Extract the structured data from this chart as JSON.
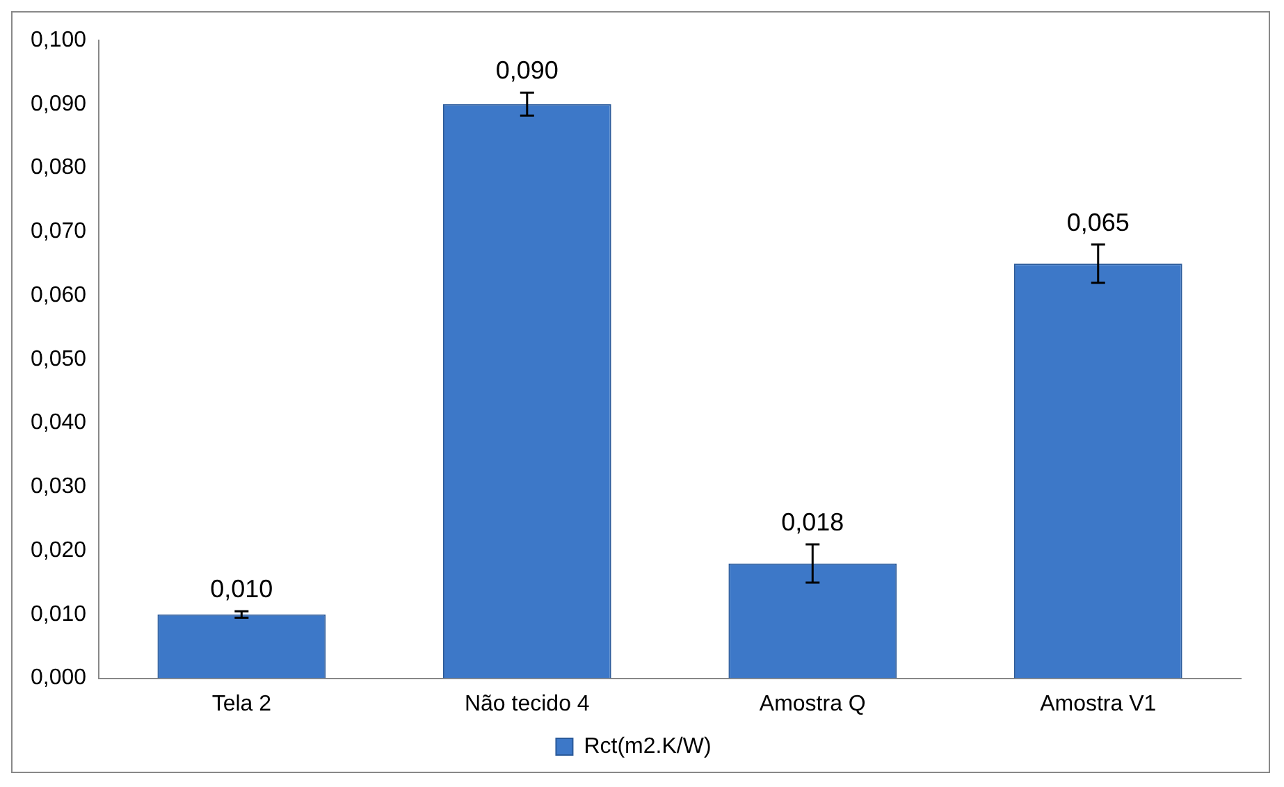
{
  "chart_data": {
    "type": "bar",
    "categories": [
      "Tela 2",
      "Não tecido 4",
      "Amostra Q",
      "Amostra V1"
    ],
    "series": [
      {
        "name": "Rct(m2.K/W)",
        "color": "#3d78c8",
        "values": [
          0.01,
          0.09,
          0.018,
          0.065
        ],
        "errors": [
          0.0005,
          0.0018,
          0.003,
          0.003
        ],
        "value_labels": [
          "0,010",
          "0,090",
          "0,018",
          "0,065"
        ]
      }
    ],
    "ylim": [
      0,
      0.1
    ],
    "yticks": [
      {
        "value": 0,
        "label": "0,000"
      },
      {
        "value": 0.01,
        "label": "0,010"
      },
      {
        "value": 0.02,
        "label": "0,020"
      },
      {
        "value": 0.03,
        "label": "0,030"
      },
      {
        "value": 0.04,
        "label": "0,040"
      },
      {
        "value": 0.05,
        "label": "0,050"
      },
      {
        "value": 0.06,
        "label": "0,060"
      },
      {
        "value": 0.07,
        "label": "0,070"
      },
      {
        "value": 0.08,
        "label": "0,080"
      },
      {
        "value": 0.09,
        "label": "0,090"
      },
      {
        "value": 0.1,
        "label": "0,100"
      }
    ],
    "grid": false,
    "legend": "bottom"
  }
}
